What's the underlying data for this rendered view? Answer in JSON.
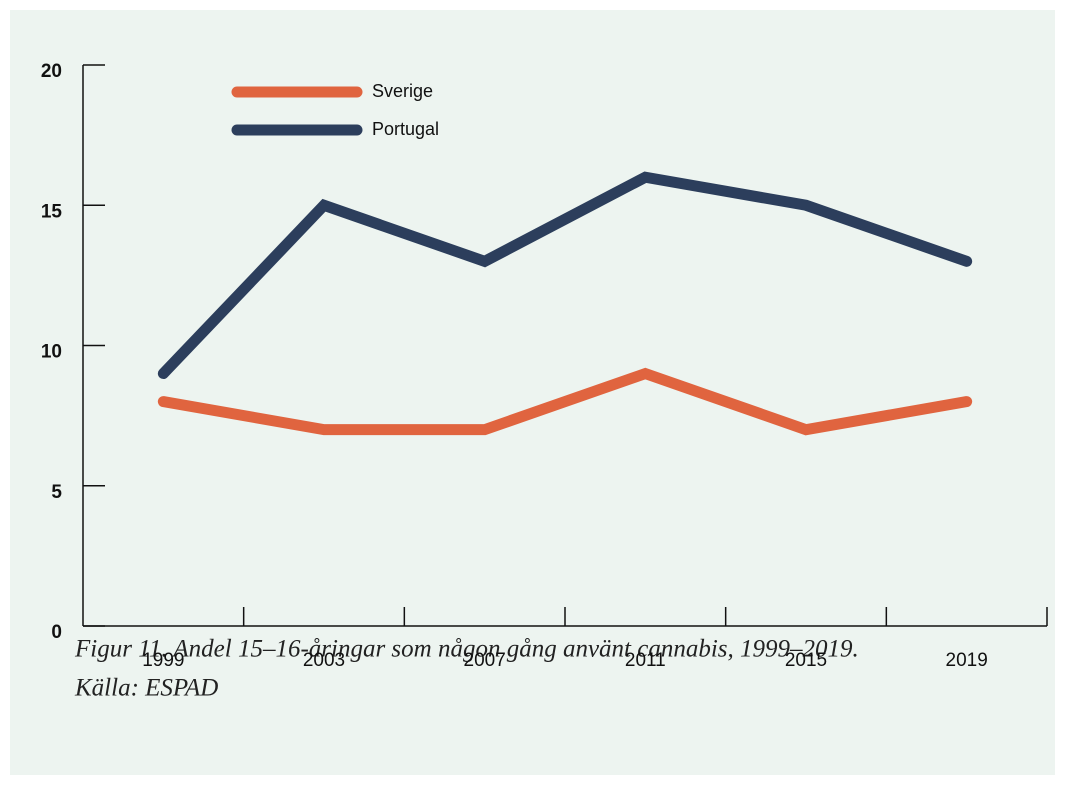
{
  "chart_data": {
    "type": "line",
    "categories": [
      "1999",
      "2003",
      "2007",
      "2011",
      "2015",
      "2019"
    ],
    "series": [
      {
        "name": "Sverige",
        "color": "#e0643f",
        "values": [
          8,
          7,
          7,
          9,
          7,
          8
        ]
      },
      {
        "name": "Portugal",
        "color": "#2c3e5c",
        "values": [
          9,
          15,
          13,
          16,
          15,
          13
        ]
      }
    ],
    "ylim": [
      0,
      20
    ],
    "yticks": [
      0,
      5,
      10,
      15,
      20
    ],
    "legend": "top-left",
    "caption": [
      "Figur 11. Andel 15–16-åringar som någon gång använt cannabis, 1999–2019.",
      "Källa: ESPAD"
    ]
  }
}
